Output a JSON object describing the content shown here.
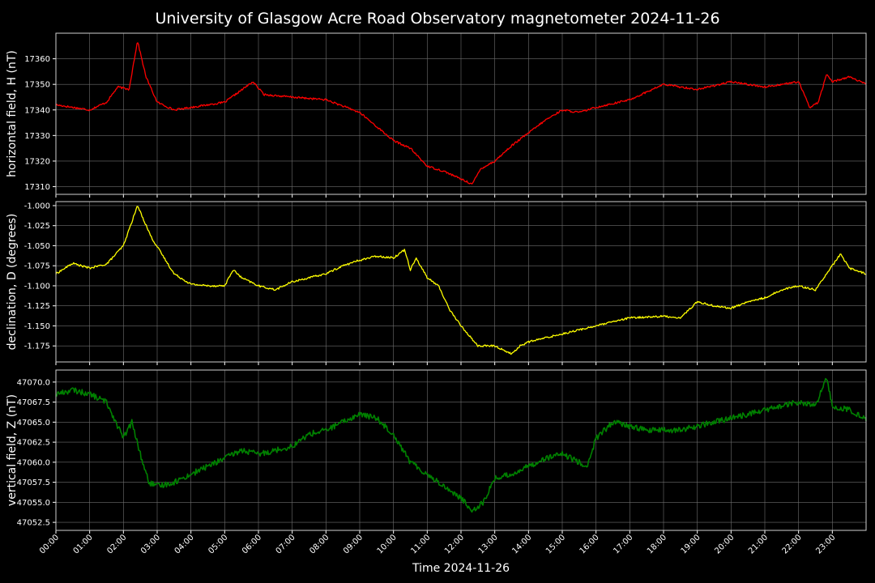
{
  "chart_data": {
    "type": "line",
    "title": "University of Glasgow Acre Road Observatory magnetometer 2024-11-26",
    "xlabel": "Time 2024-11-26",
    "x_ticks": [
      "00:00",
      "01:00",
      "02:00",
      "03:00",
      "04:00",
      "05:00",
      "06:00",
      "07:00",
      "08:00",
      "09:00",
      "10:00",
      "11:00",
      "12:00",
      "13:00",
      "14:00",
      "15:00",
      "16:00",
      "17:00",
      "18:00",
      "19:00",
      "20:00",
      "21:00",
      "22:00",
      "23:00"
    ],
    "xlim": [
      "00:00",
      "24:00"
    ],
    "grid": true,
    "panels": [
      {
        "name": "H",
        "ylabel": "horizontal field, H (nT)",
        "color": "#ff0000",
        "ylim": [
          17307,
          17370
        ],
        "y_ticks": [
          "17310",
          "17320",
          "17330",
          "17340",
          "17350",
          "17360"
        ],
        "x": [
          "00:00",
          "00:30",
          "01:00",
          "01:30",
          "01:50",
          "02:10",
          "02:25",
          "02:40",
          "03:00",
          "03:30",
          "04:00",
          "05:00",
          "05:50",
          "06:10",
          "07:00",
          "08:00",
          "09:00",
          "10:00",
          "10:30",
          "11:00",
          "11:30",
          "12:00",
          "12:20",
          "12:35",
          "13:00",
          "13:30",
          "14:00",
          "14:30",
          "15:00",
          "15:30",
          "16:00",
          "17:00",
          "18:00",
          "19:00",
          "20:00",
          "21:00",
          "21:30",
          "22:00",
          "22:20",
          "22:35",
          "22:50",
          "23:00",
          "23:30",
          "24:00"
        ],
        "values": [
          17342,
          17341,
          17340,
          17343,
          17349,
          17348,
          17367,
          17353,
          17343,
          17340,
          17341,
          17343,
          17351,
          17346,
          17345,
          17344,
          17339,
          17328,
          17325,
          17318,
          17316,
          17313,
          17311,
          17317,
          17320,
          17326,
          17331,
          17336,
          17340,
          17339,
          17341,
          17344,
          17350,
          17348,
          17351,
          17349,
          17350,
          17351,
          17341,
          17343,
          17354,
          17351,
          17353,
          17350
        ]
      },
      {
        "name": "D",
        "ylabel": "declination, D (degrees)",
        "color": "#ffff00",
        "ylim": [
          -1.195,
          -0.995
        ],
        "y_ticks": [
          "-1.000",
          "-1.025",
          "-1.050",
          "-1.075",
          "-1.100",
          "-1.125",
          "-1.150",
          "-1.175"
        ],
        "x": [
          "00:00",
          "00:30",
          "01:00",
          "01:30",
          "02:00",
          "02:25",
          "02:50",
          "03:30",
          "04:00",
          "04:30",
          "05:00",
          "05:15",
          "05:30",
          "06:00",
          "06:30",
          "07:00",
          "07:30",
          "08:00",
          "08:30",
          "09:00",
          "09:30",
          "10:00",
          "10:20",
          "10:30",
          "10:40",
          "11:00",
          "11:20",
          "11:40",
          "12:00",
          "12:30",
          "13:00",
          "13:30",
          "13:45",
          "14:00",
          "15:00",
          "16:00",
          "17:00",
          "18:00",
          "18:30",
          "19:00",
          "19:30",
          "20:00",
          "20:30",
          "21:00",
          "21:30",
          "22:00",
          "22:30",
          "22:50",
          "23:15",
          "23:30",
          "24:00"
        ],
        "values": [
          -1.085,
          -1.072,
          -1.078,
          -1.073,
          -1.05,
          -1.0,
          -1.04,
          -1.085,
          -1.098,
          -1.1,
          -1.1,
          -1.08,
          -1.09,
          -1.1,
          -1.105,
          -1.095,
          -1.09,
          -1.085,
          -1.075,
          -1.068,
          -1.063,
          -1.065,
          -1.055,
          -1.08,
          -1.065,
          -1.09,
          -1.1,
          -1.13,
          -1.15,
          -1.175,
          -1.175,
          -1.185,
          -1.175,
          -1.17,
          -1.16,
          -1.15,
          -1.14,
          -1.138,
          -1.14,
          -1.12,
          -1.125,
          -1.128,
          -1.12,
          -1.115,
          -1.105,
          -1.1,
          -1.105,
          -1.085,
          -1.06,
          -1.078,
          -1.085
        ]
      },
      {
        "name": "Z",
        "ylabel": "vertical field, Z (nT)",
        "color": "#008000",
        "ylim": [
          47051.5,
          47071.5
        ],
        "y_ticks": [
          "47052.5",
          "47055.0",
          "47057.5",
          "47060.0",
          "47062.5",
          "47065.0",
          "47067.5",
          "47070.0"
        ],
        "x": [
          "00:00",
          "00:30",
          "01:00",
          "01:30",
          "02:00",
          "02:15",
          "02:30",
          "02:45",
          "03:00",
          "03:30",
          "04:00",
          "04:30",
          "05:00",
          "05:30",
          "06:00",
          "07:00",
          "07:30",
          "08:00",
          "08:30",
          "09:00",
          "09:30",
          "10:00",
          "10:30",
          "11:00",
          "11:30",
          "12:00",
          "12:20",
          "12:40",
          "13:00",
          "13:30",
          "14:00",
          "14:30",
          "15:00",
          "15:45",
          "16:00",
          "16:30",
          "17:00",
          "17:30",
          "18:00",
          "18:30",
          "19:00",
          "19:30",
          "20:00",
          "20:30",
          "21:00",
          "21:30",
          "22:00",
          "22:30",
          "22:50",
          "23:00",
          "23:30",
          "24:00"
        ],
        "values": [
          47068.5,
          47069.0,
          47068.5,
          47067.5,
          47063.0,
          47065.0,
          47061.0,
          47057.5,
          47057.0,
          47057.5,
          47058.5,
          47059.5,
          47060.5,
          47061.5,
          47061.0,
          47062.0,
          47063.5,
          47064.0,
          47065.0,
          47066.0,
          47065.5,
          47063.5,
          47060.0,
          47058.5,
          47057.0,
          47055.5,
          47054.0,
          47055.0,
          47058.0,
          47058.5,
          47059.5,
          47060.5,
          47061.0,
          47059.5,
          47063.0,
          47065.0,
          47064.5,
          47064.0,
          47064.0,
          47064.0,
          47064.5,
          47065.0,
          47065.5,
          47066.0,
          47066.5,
          47067.0,
          47067.5,
          47067.0,
          47070.5,
          47067.0,
          47066.5,
          47065.5
        ]
      }
    ]
  }
}
